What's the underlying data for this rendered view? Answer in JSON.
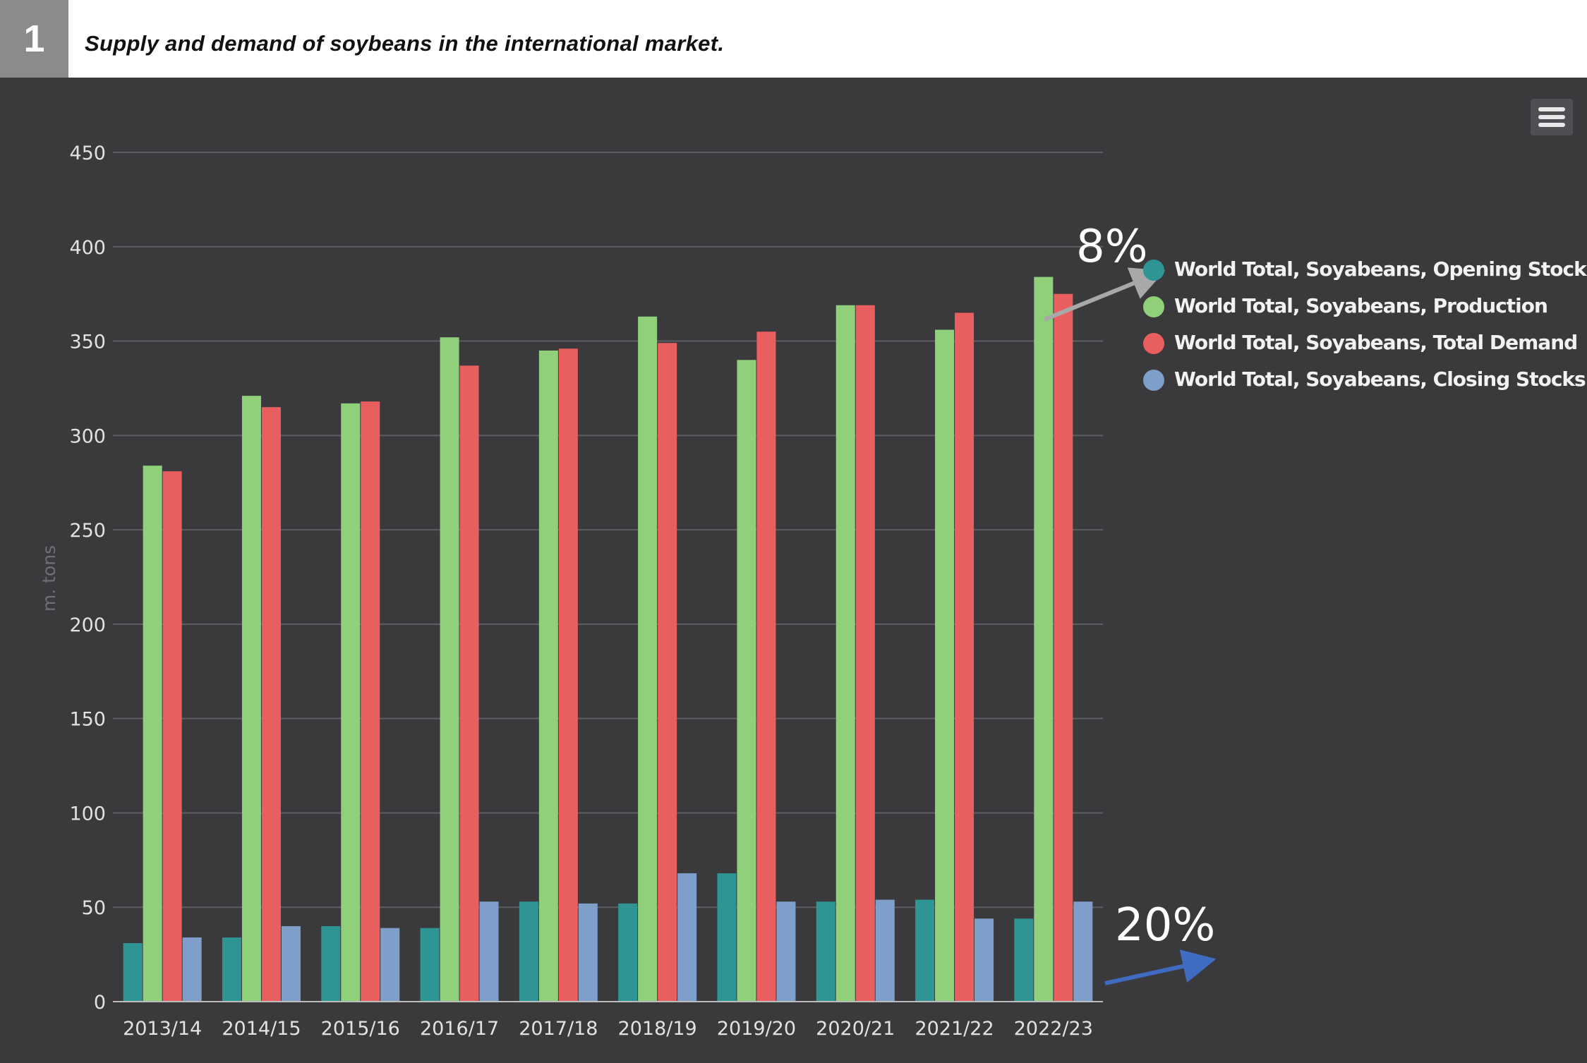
{
  "figure": {
    "number": "1",
    "title": "Supply and demand of soybeans in the international market."
  },
  "icons": {
    "menu": "hamburger-menu-icon"
  },
  "annotations": {
    "production_growth": "8%",
    "closing_stocks_growth": "20%"
  },
  "colors": {
    "panel_bg": "#3a3a3d",
    "opening_stocks": "#2e9494",
    "production": "#90d07a",
    "total_demand": "#e95f5f",
    "closing_stocks": "#7f9fcb",
    "arrow_gray": "#a8a8a8",
    "arrow_blue": "#3f6cc0"
  },
  "chart_data": {
    "type": "bar",
    "title": "",
    "xlabel": "",
    "ylabel": "m. tons",
    "ylim": [
      0,
      450
    ],
    "yticks": [
      0,
      50,
      100,
      150,
      200,
      250,
      300,
      350,
      400,
      450
    ],
    "grid": true,
    "legend_position": "right",
    "categories": [
      "2013/14",
      "2014/15",
      "2015/16",
      "2016/17",
      "2017/18",
      "2018/19",
      "2019/20",
      "2020/21",
      "2021/22",
      "2022/23"
    ],
    "series": [
      {
        "name": "World Total, Soyabeans, Opening Stocks",
        "color": "#2e9494",
        "values": [
          31,
          34,
          40,
          39,
          53,
          52,
          68,
          53,
          54,
          44
        ]
      },
      {
        "name": "World Total, Soyabeans, Production",
        "color": "#90d07a",
        "values": [
          284,
          321,
          317,
          352,
          345,
          363,
          340,
          369,
          356,
          384
        ]
      },
      {
        "name": "World Total, Soyabeans, Total Demand",
        "color": "#e95f5f",
        "values": [
          281,
          315,
          318,
          337,
          346,
          349,
          355,
          369,
          365,
          375
        ]
      },
      {
        "name": "World Total, Soyabeans, Closing Stocks",
        "color": "#7f9fcb",
        "values": [
          34,
          40,
          39,
          53,
          52,
          68,
          53,
          54,
          44,
          53
        ]
      }
    ]
  }
}
